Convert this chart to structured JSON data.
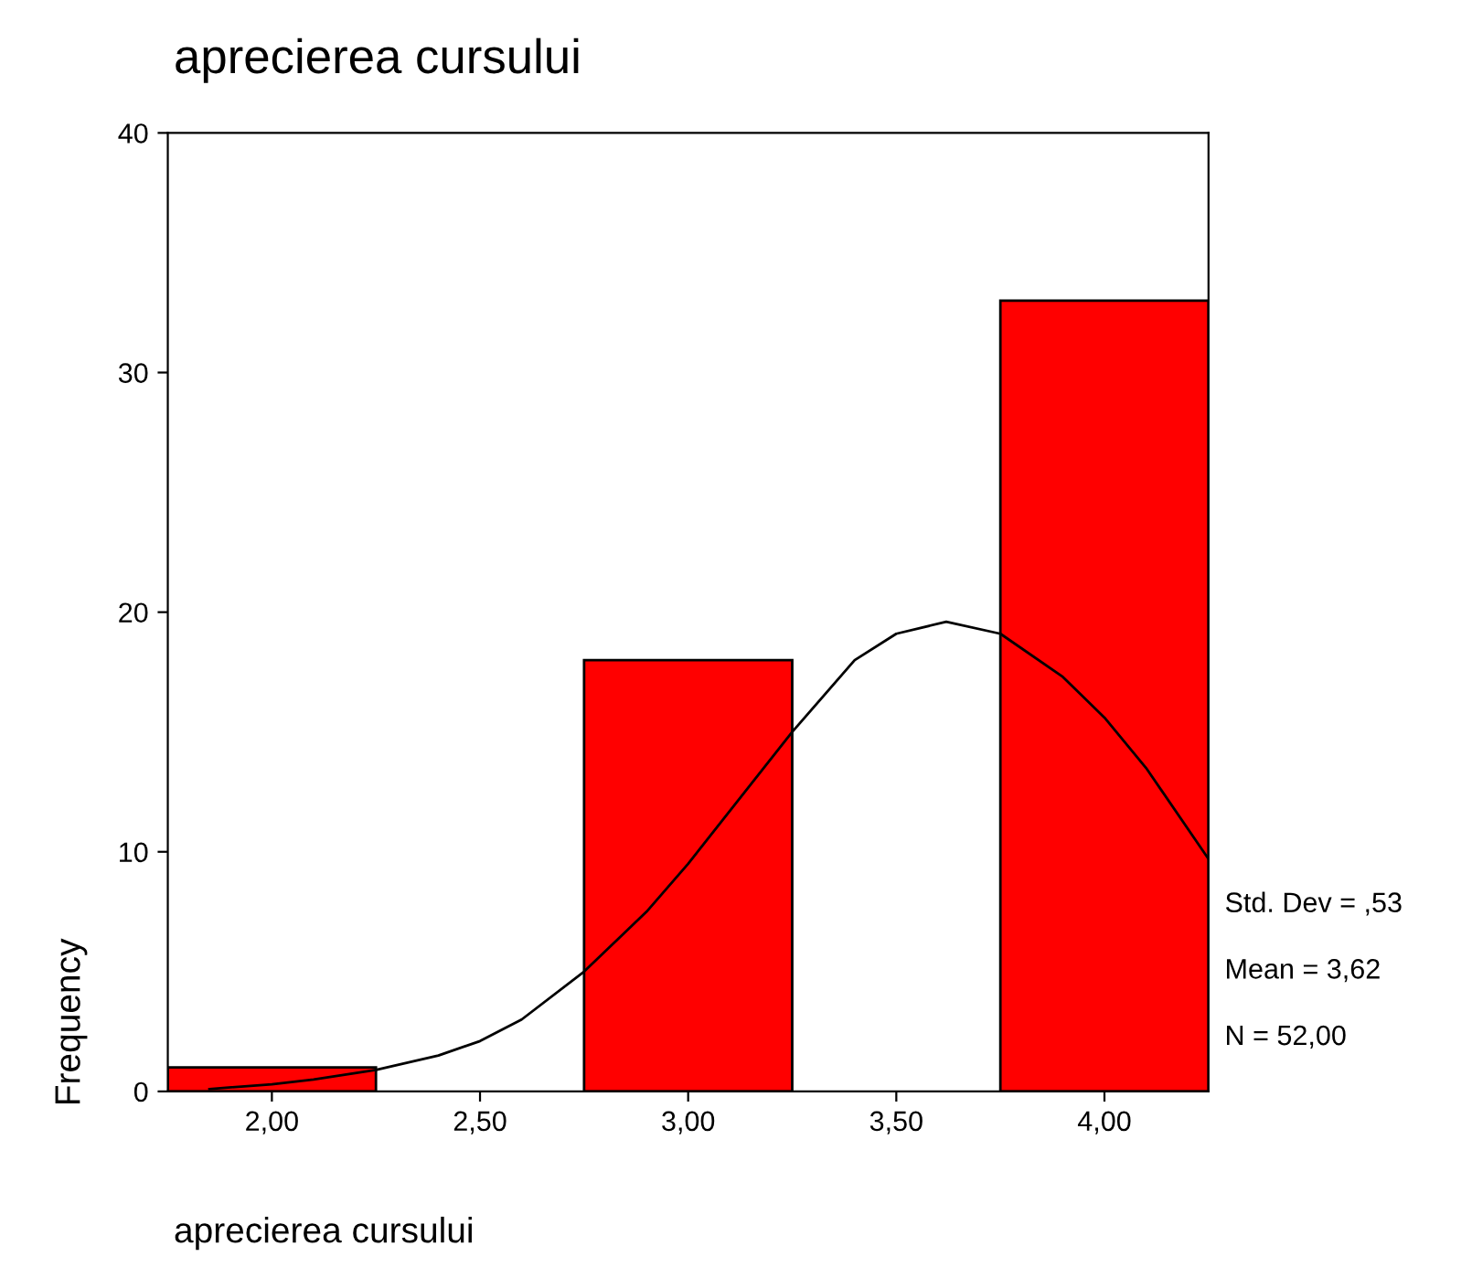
{
  "chart_data": {
    "type": "histogram",
    "title": "aprecierea cursului",
    "xlabel": "aprecierea cursului",
    "ylabel": "Frequency",
    "bins": [
      1.75,
      2.25,
      2.75,
      3.25,
      3.75,
      4.25
    ],
    "values": [
      1,
      0,
      18,
      0,
      33
    ],
    "color": "#ff0000",
    "series": [
      {
        "type": "line",
        "color": "#000000",
        "x": [
          1.85,
          2.0,
          2.1,
          2.25,
          2.4,
          2.5,
          2.6,
          2.75,
          2.9,
          3.0,
          3.1,
          3.25,
          3.4,
          3.5,
          3.62,
          3.75,
          3.9,
          4.0,
          4.1,
          4.25
        ],
        "values": [
          0.1,
          0.3,
          0.5,
          0.9,
          1.5,
          2.1,
          3.0,
          5.0,
          7.5,
          9.5,
          11.7,
          15.0,
          18.0,
          19.1,
          19.6,
          19.1,
          17.3,
          15.6,
          13.5,
          9.7
        ]
      }
    ],
    "xlim": [
      1.75,
      4.25
    ],
    "ylim": [
      0,
      40
    ],
    "xticks": [
      {
        "value": 2.0,
        "label": "2,00"
      },
      {
        "value": 2.5,
        "label": "2,50"
      },
      {
        "value": 3.0,
        "label": "3,00"
      },
      {
        "value": 3.5,
        "label": "3,50"
      },
      {
        "value": 4.0,
        "label": "4,00"
      }
    ],
    "yticks": [
      0,
      10,
      20,
      30,
      40
    ],
    "grid": false,
    "legend": false,
    "annotations": [
      "Std. Dev = ,53",
      "Mean = 3,62",
      "N = 52,00"
    ]
  }
}
